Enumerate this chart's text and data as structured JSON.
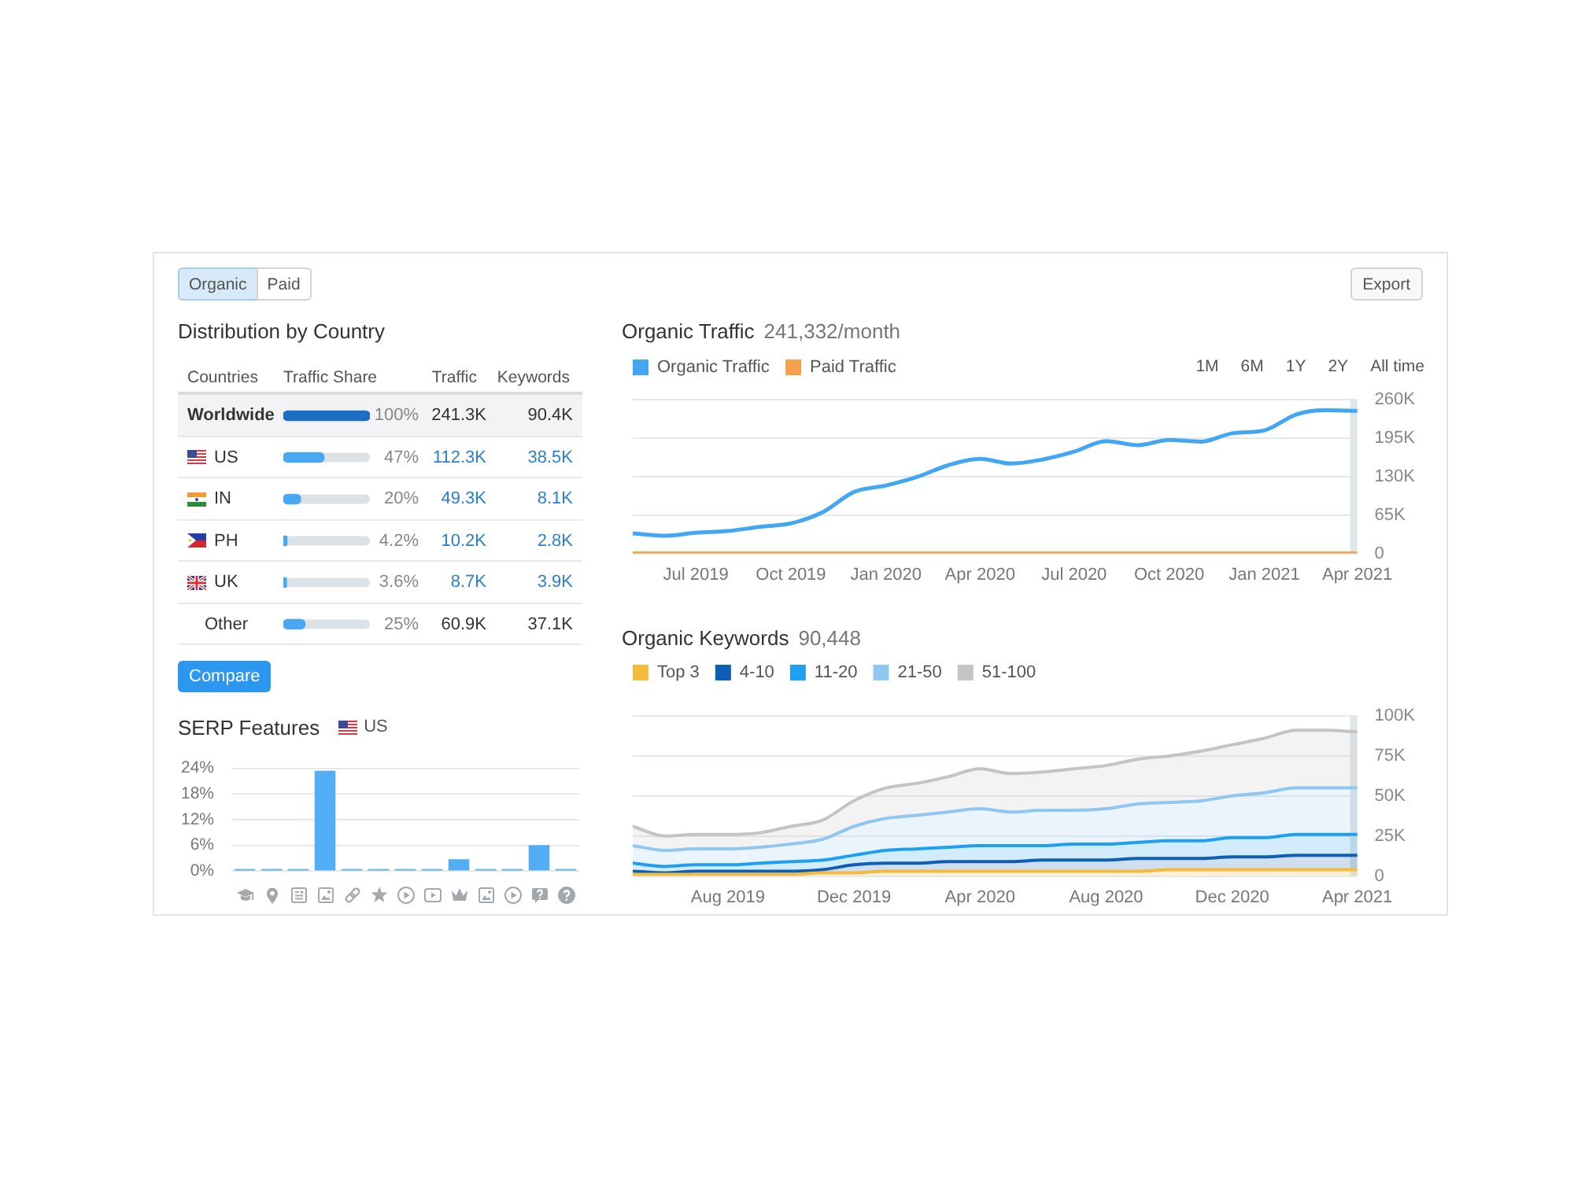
{
  "chart_data": [
    {
      "type": "other",
      "annotations": [
        "Organic",
        "Paid",
        "Export"
      ]
    },
    {
      "type": "bar",
      "orientation": "horizontal",
      "title": "Distribution by Country",
      "ylabel": "Countries",
      "xlabel": "Traffic Share",
      "categories": [
        "Worldwide",
        "US",
        "IN",
        "PH",
        "UK",
        "Other"
      ],
      "values": [
        100,
        47,
        20,
        4.2,
        3.6,
        25
      ],
      "colors": [
        "#1b6ec2",
        "#4aa8f2",
        "#4aa8f2",
        "#4aa8f2",
        "#4aa8f2",
        "#4aa8f2"
      ],
      "xlim": [
        0,
        100
      ],
      "value_labels": [
        "100%",
        "47%",
        "20%",
        "4.2%",
        "3.6%",
        "25%"
      ],
      "tick_labels": "y",
      "annotations": [
        "Traffic",
        "Keywords",
        "241.3K",
        "90.4K",
        "112.3K",
        "38.5K",
        "49.3K",
        "8.1K",
        "10.2K",
        "2.8K",
        "8.7K",
        "3.9K",
        "60.9K",
        "37.1K",
        "Compare"
      ]
    },
    {
      "type": "bar",
      "title": "SERP Features",
      "subtitle": "US",
      "categories": [
        null,
        null,
        null,
        null,
        null,
        null,
        null,
        null,
        null,
        null,
        null,
        null,
        null
      ],
      "values": [
        0.5,
        0.5,
        0.5,
        23.4,
        0.5,
        0.5,
        0.5,
        0.5,
        2.8,
        0.5,
        0.5,
        6.1,
        0.5
      ],
      "color": "#52adf4",
      "ylim": [
        0,
        24
      ],
      "yticks": [
        {
          "value": 0,
          "label": "0%"
        },
        {
          "value": 6,
          "label": "6%"
        },
        {
          "value": 12,
          "label": "12%"
        },
        {
          "value": 18,
          "label": "18%"
        },
        {
          "value": 24,
          "label": "24%"
        }
      ],
      "grid": "y"
    },
    {
      "type": "line",
      "title": "Organic Traffic",
      "subtitle": "241,332/month",
      "x": [
        "2019-05",
        "2019-06",
        "2019-07",
        "2019-08",
        "2019-09",
        "2019-10",
        "2019-11",
        "2019-12",
        "2020-01",
        "2020-02",
        "2020-03",
        "2020-04",
        "2020-05",
        "2020-06",
        "2020-07",
        "2020-08",
        "2020-09",
        "2020-10",
        "2020-11",
        "2020-12",
        "2021-01",
        "2021-02",
        "2021-03",
        "2021-04"
      ],
      "series": [
        {
          "name": "Organic Traffic",
          "color": "#42a7f3",
          "values": [
            34000,
            30000,
            35000,
            38000,
            45000,
            51000,
            70000,
            104000,
            115000,
            130000,
            149000,
            160000,
            152000,
            159000,
            172000,
            190000,
            183000,
            192000,
            189000,
            203000,
            208000,
            235000,
            242000,
            241000
          ]
        },
        {
          "name": "Paid Traffic",
          "color": "#f5a04a",
          "values": [
            0,
            0,
            0,
            0,
            0,
            0,
            0,
            0,
            0,
            0,
            0,
            0,
            0,
            0,
            0,
            0,
            0,
            0,
            0,
            0,
            0,
            0,
            0,
            0
          ]
        }
      ],
      "xlim": [
        "2019-05",
        "2021-04"
      ],
      "xticks": [
        {
          "value": "2019-07",
          "label": "Jul 2019"
        },
        {
          "value": "2019-10",
          "label": "Oct 2019"
        },
        {
          "value": "2020-01",
          "label": "Jan 2020"
        },
        {
          "value": "2020-04",
          "label": "Apr 2020"
        },
        {
          "value": "2020-07",
          "label": "Jul 2020"
        },
        {
          "value": "2020-10",
          "label": "Oct 2020"
        },
        {
          "value": "2021-01",
          "label": "Jan 2021"
        },
        {
          "value": "2021-04",
          "label": "Apr 2021"
        }
      ],
      "ylim": [
        0,
        260000
      ],
      "yticks": [
        0,
        {
          "value": 65000,
          "label": "65K"
        },
        {
          "value": 130000,
          "label": "130K"
        },
        {
          "value": 195000,
          "label": "195K"
        },
        {
          "value": 260000,
          "label": "260K"
        }
      ],
      "grid": "y",
      "legend": "top left",
      "bands": [
        {
          "axis": "x",
          "from": "2021-03-25",
          "to": "2021-04",
          "color": "#dfe5e9"
        }
      ],
      "annotations": [
        "1M",
        "6M",
        "1Y",
        "2Y",
        "All time"
      ]
    },
    {
      "type": "area",
      "stacked": true,
      "title": "Organic Keywords",
      "subtitle": "90,448",
      "x": [
        "2019-05",
        "2019-06",
        "2019-07",
        "2019-08",
        "2019-09",
        "2019-10",
        "2019-11",
        "2019-12",
        "2020-01",
        "2020-02",
        "2020-03",
        "2020-04",
        "2020-05",
        "2020-06",
        "2020-07",
        "2020-08",
        "2020-09",
        "2020-10",
        "2020-11",
        "2020-12",
        "2021-01",
        "2021-02",
        "2021-03",
        "2021-04"
      ],
      "series": [
        {
          "name": "Top 3",
          "color": "#f5bb3a",
          "values": [
            1000,
            1000,
            1000,
            1000,
            1000,
            1000,
            2000,
            2000,
            3000,
            3000,
            3000,
            3000,
            3000,
            3000,
            3000,
            3000,
            3000,
            4000,
            4000,
            4000,
            4000,
            4000,
            4000,
            4000
          ]
        },
        {
          "name": "4-10",
          "color": "#0d5fb5",
          "values": [
            2000,
            1000,
            2000,
            2000,
            2000,
            2000,
            2000,
            5000,
            5000,
            5000,
            6000,
            6000,
            6000,
            7000,
            7000,
            7000,
            8000,
            7000,
            7000,
            8000,
            8000,
            9000,
            9000,
            9000
          ]
        },
        {
          "name": "11-20",
          "color": "#1f9ff2",
          "values": [
            5000,
            4000,
            4000,
            4000,
            5000,
            6000,
            6000,
            6000,
            8000,
            9000,
            9000,
            10000,
            10000,
            9000,
            10000,
            10000,
            10000,
            11000,
            11000,
            12000,
            12000,
            13000,
            13000,
            13000
          ]
        },
        {
          "name": "21-50",
          "color": "#8fc6f2",
          "values": [
            11000,
            10000,
            10000,
            10000,
            10000,
            11000,
            13000,
            18000,
            20000,
            21000,
            22000,
            23000,
            21000,
            22000,
            21000,
            22000,
            24000,
            24000,
            25000,
            26000,
            28000,
            29000,
            29000,
            29000
          ]
        },
        {
          "name": "51-100",
          "color": "#c4c4c4",
          "values": [
            12000,
            9000,
            9000,
            9000,
            9000,
            11000,
            12000,
            16000,
            19000,
            20000,
            22000,
            25000,
            24000,
            24000,
            26000,
            27000,
            28000,
            29000,
            31000,
            32000,
            34000,
            36000,
            36000,
            35000
          ]
        }
      ],
      "xlim": [
        "2019-05",
        "2021-04"
      ],
      "xticks": [
        {
          "value": "2019-08",
          "label": "Aug 2019"
        },
        {
          "value": "2019-12",
          "label": "Dec 2019"
        },
        {
          "value": "2020-04",
          "label": "Apr 2020"
        },
        {
          "value": "2020-08",
          "label": "Aug 2020"
        },
        {
          "value": "2020-12",
          "label": "Dec 2020"
        },
        {
          "value": "2021-04",
          "label": "Apr 2021"
        }
      ],
      "ylim": [
        0,
        100000
      ],
      "yticks": [
        0,
        {
          "value": 25000,
          "label": "25K"
        },
        {
          "value": 50000,
          "label": "50K"
        },
        {
          "value": 75000,
          "label": "75K"
        },
        {
          "value": 100000,
          "label": "100K"
        }
      ],
      "grid": "y",
      "legend": "top left",
      "bands": [
        {
          "axis": "x",
          "from": "2021-03-25",
          "to": "2021-04",
          "color": "#dfe5e9"
        }
      ]
    }
  ]
}
